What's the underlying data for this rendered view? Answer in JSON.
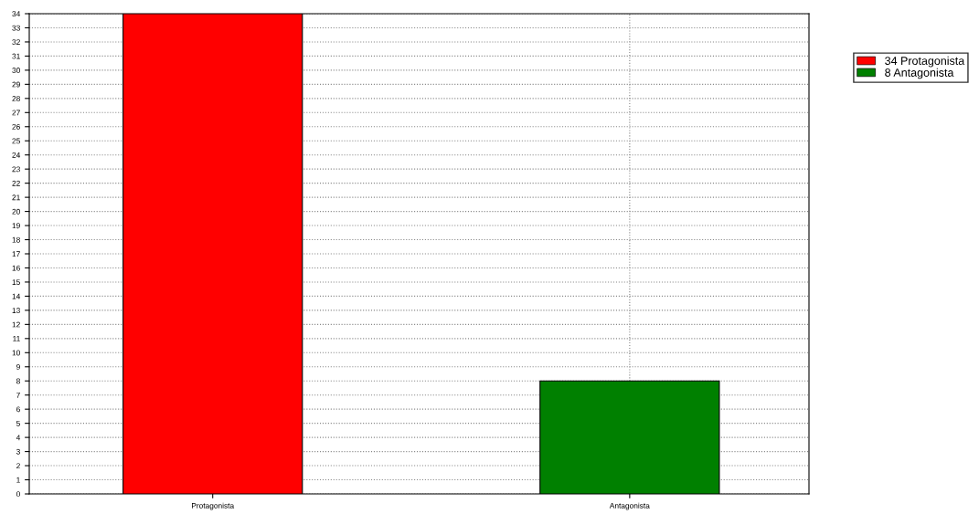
{
  "chart_data": {
    "type": "bar",
    "categories": [
      "Protagonista",
      "Antagonista"
    ],
    "stacked": true,
    "series": [
      {
        "name": "34 Protagonista",
        "color": "#ff0000",
        "values": [
          34,
          null
        ]
      },
      {
        "name": "8 Antagonista",
        "color": "#008000",
        "values": [
          null,
          8
        ]
      }
    ],
    "ylim": [
      0,
      34
    ],
    "yticks": [
      0,
      1,
      2,
      3,
      4,
      5,
      6,
      7,
      8,
      9,
      10,
      11,
      12,
      13,
      14,
      15,
      16,
      17,
      18,
      19,
      20,
      21,
      22,
      23,
      24,
      25,
      26,
      27,
      28,
      29,
      30,
      31,
      32,
      33,
      34
    ],
    "grid": true,
    "legend": "top right"
  }
}
